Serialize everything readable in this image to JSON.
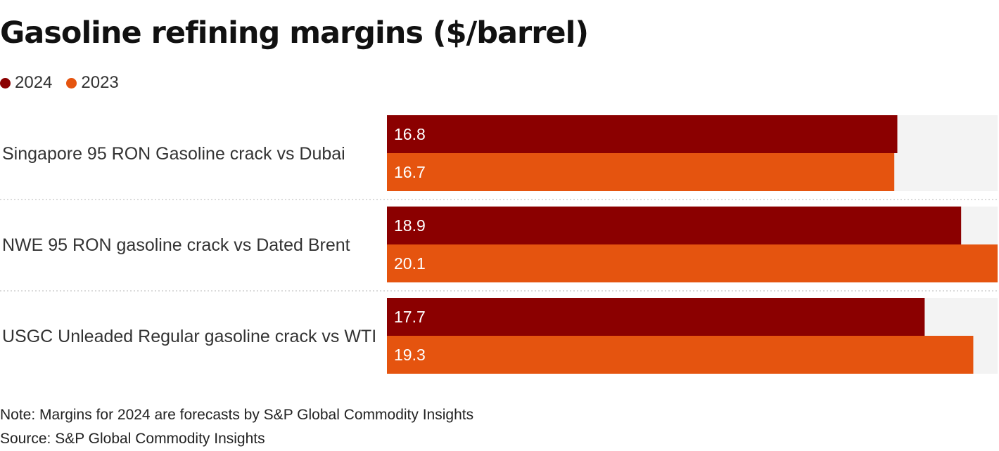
{
  "title": "Gasoline refining margins ($/barrel)",
  "legend": [
    {
      "label": "2024",
      "color": "#8b0000"
    },
    {
      "label": "2023",
      "color": "#e5540f"
    }
  ],
  "note": "Note: Margins for 2024 are forecasts by S&P Global Commodity Insights",
  "source": "Source: S&P Global Commodity Insights",
  "chart_data": {
    "type": "bar",
    "orientation": "horizontal",
    "categories": [
      "Singapore 95 RON Gasoline crack vs Dubai",
      "NWE 95 RON gasoline crack vs Dated Brent",
      "USGC Unleaded Regular gasoline crack vs WTI"
    ],
    "series": [
      {
        "name": "2024",
        "color": "#8b0000",
        "values": [
          16.8,
          18.9,
          17.7
        ]
      },
      {
        "name": "2023",
        "color": "#e5540f",
        "values": [
          16.7,
          20.1,
          19.3
        ]
      }
    ],
    "xlim": [
      0,
      20.1
    ],
    "grid": false,
    "legend_position": "top-left",
    "data_labels": true
  }
}
